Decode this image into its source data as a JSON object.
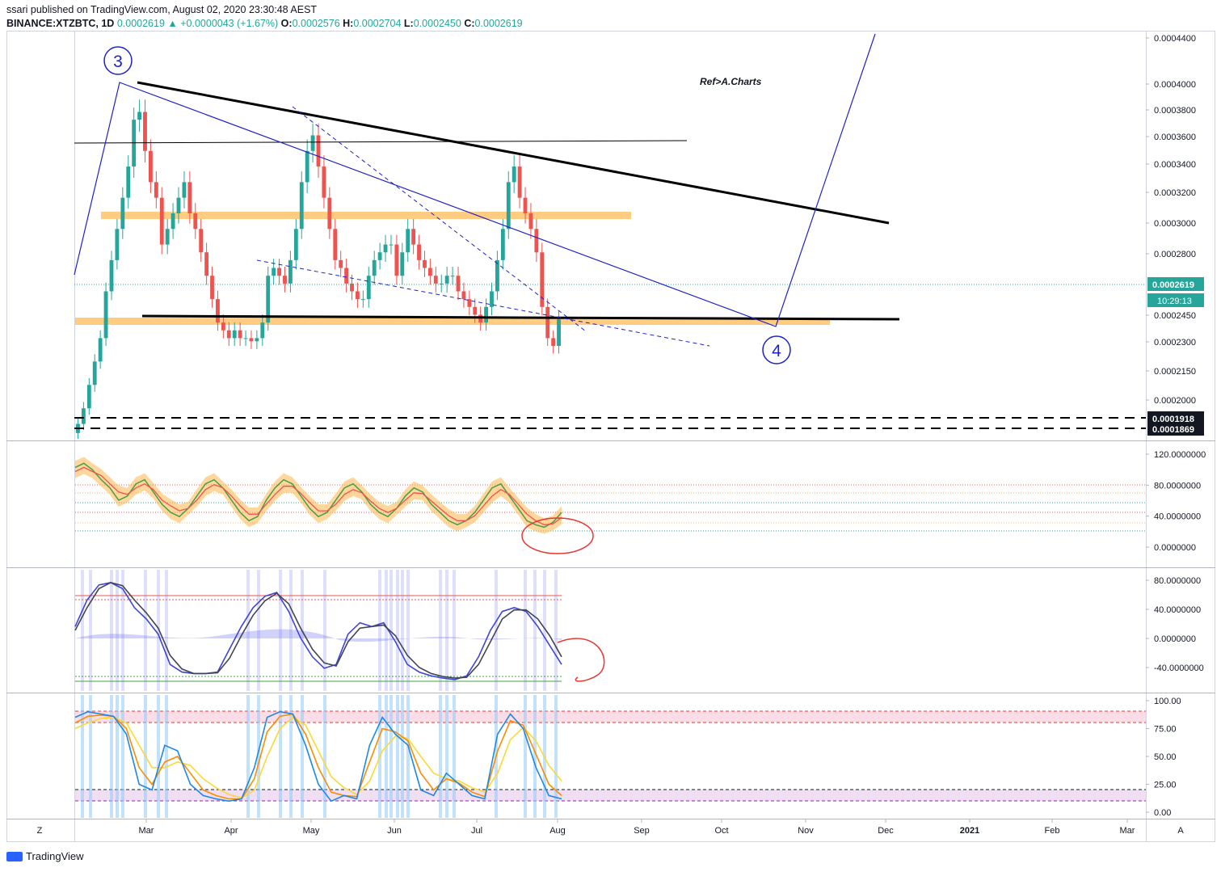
{
  "header": {
    "publisher_line": "ssari published on TradingView.com, August 02, 2020 23:30:48 AEST",
    "symbol_line": "BINANCE:XTZBTC, 1D",
    "close_value": "0.0002619",
    "change": "▲ +0.0000043 (+1.67%)",
    "o_label": "O:",
    "o_value": "0.0002576",
    "h_label": "H:",
    "h_value": "0.0002704",
    "l_label": "L:",
    "l_value": "0.0002450",
    "c_label": "C:",
    "c_value": "0.0002619"
  },
  "colors": {
    "up": "#26a69a",
    "down": "#ef5350",
    "trendline": "#000000",
    "wave_line": "#1e22c7",
    "zone": "#ffb74d",
    "price_label_bg": "#26a69a",
    "label_dark": "#131722"
  },
  "chart_data": [
    {
      "type": "candlestick",
      "title": "BINANCE:XTZBTC, 1D",
      "y_ticks": [
        "0.0004400",
        "0.0004000",
        "0.0003800",
        "0.0003600",
        "0.0003400",
        "0.0003200",
        "0.0003000",
        "0.0002800",
        "0.0002450",
        "0.0002300",
        "0.0002150",
        "0.0002000"
      ],
      "x_ticks": [
        "Mar",
        "Apr",
        "May",
        "Jun",
        "Jul",
        "Aug",
        "Sep",
        "Oct",
        "Nov",
        "Dec",
        "2021",
        "Feb",
        "Mar"
      ],
      "price_labels": {
        "last": "0.0002619",
        "countdown": "10:29:13",
        "level1": "0.0001918",
        "level2": "0.0001869"
      },
      "annotations": {
        "wave3": "3",
        "wave4": "4",
        "ref": "Ref>A.Charts"
      },
      "series_close": [
        0.000195,
        0.000205,
        0.00022,
        0.000235,
        0.00025,
        0.00028,
        0.0003,
        0.00032,
        0.00034,
        0.00036,
        0.00039,
        0.000395,
        0.00037,
        0.00035,
        0.00034,
        0.00031,
        0.00032,
        0.00033,
        0.00034,
        0.00035,
        0.00033,
        0.00032,
        0.000305,
        0.00029,
        0.000275,
        0.00026,
        0.000255,
        0.00025,
        0.000255,
        0.00025,
        0.00025,
        0.000248,
        0.00025,
        0.00026,
        0.00029,
        0.000295,
        0.00029,
        0.000285,
        0.0003,
        0.00032,
        0.00035,
        0.00037,
        0.00038,
        0.00036,
        0.00034,
        0.00032,
        0.0003,
        0.000295,
        0.000285,
        0.00028,
        0.000275,
        0.000275,
        0.00029,
        0.0003,
        0.000305,
        0.00031,
        0.00031,
        0.00029,
        0.000305,
        0.00032,
        0.00031,
        0.0003,
        0.000295,
        0.00029,
        0.000285,
        0.000285,
        0.00029,
        0.00029,
        0.00028,
        0.000275,
        0.00027,
        0.000265,
        0.00026,
        0.00027,
        0.00028,
        0.0003,
        0.00032,
        0.00035,
        0.00036,
        0.00034,
        0.00033,
        0.00032,
        0.000305,
        0.00027,
        0.00025,
        0.000245,
        0.000262
      ],
      "ylim": [
        0.000187,
        0.000445
      ]
    },
    {
      "type": "line",
      "title": "",
      "y_ticks": [
        "120.0000000",
        "80.0000000",
        "40.0000000",
        "0.0000000"
      ],
      "series": [
        {
          "values": [
            95,
            100,
            92,
            80,
            70,
            55,
            60,
            75,
            80,
            65,
            50,
            40,
            35,
            45,
            60,
            75,
            80,
            70,
            55,
            40,
            30,
            35,
            55,
            70,
            80,
            75,
            60,
            45,
            35,
            40,
            55,
            70,
            75,
            65,
            50,
            40,
            35,
            45,
            60,
            70,
            65,
            50,
            40,
            30,
            25,
            30,
            40,
            55,
            70,
            75,
            60,
            45,
            30,
            25,
            22,
            28,
            40
          ]
        },
        {
          "values": [
            90,
            95,
            90,
            85,
            75,
            65,
            62,
            70,
            75,
            68,
            55,
            48,
            42,
            45,
            55,
            68,
            74,
            70,
            60,
            48,
            38,
            38,
            50,
            62,
            72,
            72,
            63,
            52,
            42,
            42,
            50,
            62,
            68,
            64,
            54,
            45,
            40,
            45,
            55,
            64,
            63,
            54,
            45,
            36,
            30,
            30,
            36,
            48,
            60,
            68,
            62,
            50,
            38,
            30,
            25,
            26,
            34
          ]
        }
      ],
      "ylim": [
        -25,
        125
      ]
    },
    {
      "type": "line",
      "title": "",
      "y_ticks": [
        "80.0000000",
        "40.0000000",
        "0.0000000",
        "-40.0000000"
      ],
      "series": [
        {
          "values": [
            20,
            55,
            75,
            78,
            70,
            45,
            30,
            10,
            -30,
            -40,
            -42,
            -42,
            -40,
            -10,
            20,
            45,
            60,
            65,
            40,
            5,
            -20,
            -35,
            -30,
            10,
            25,
            20,
            25,
            0,
            -30,
            -40,
            -45,
            -48,
            -50,
            -45,
            -20,
            15,
            40,
            45,
            40,
            20,
            -5,
            -30
          ]
        },
        {
          "values": [
            15,
            45,
            70,
            78,
            74,
            55,
            38,
            18,
            -18,
            -36,
            -42,
            -42,
            -41,
            -22,
            8,
            35,
            54,
            64,
            50,
            18,
            -10,
            -28,
            -32,
            0,
            18,
            20,
            22,
            8,
            -18,
            -34,
            -42,
            -46,
            -48,
            -47,
            -30,
            0,
            30,
            42,
            42,
            30,
            8,
            -20
          ]
        }
      ],
      "ylim": [
        -65,
        95
      ]
    },
    {
      "type": "line",
      "title": "",
      "y_ticks": [
        "100.00",
        "75.00",
        "50.00",
        "25.00",
        "0.00"
      ],
      "series": [
        {
          "values": [
            85,
            90,
            88,
            86,
            70,
            25,
            20,
            60,
            55,
            25,
            15,
            12,
            10,
            12,
            40,
            85,
            90,
            88,
            60,
            25,
            10,
            15,
            12,
            60,
            85,
            70,
            60,
            20,
            15,
            35,
            25,
            15,
            12,
            70,
            88,
            75,
            40,
            15,
            12
          ]
        },
        {
          "values": [
            80,
            86,
            87,
            86,
            75,
            40,
            25,
            45,
            50,
            35,
            20,
            15,
            12,
            12,
            30,
            72,
            86,
            88,
            70,
            40,
            18,
            15,
            14,
            45,
            75,
            72,
            64,
            35,
            20,
            30,
            26,
            18,
            14,
            55,
            82,
            78,
            52,
            25,
            15
          ]
        },
        {
          "values": [
            75,
            80,
            84,
            85,
            80,
            60,
            40,
            40,
            45,
            42,
            30,
            22,
            16,
            13,
            20,
            50,
            75,
            85,
            78,
            55,
            32,
            22,
            16,
            28,
            55,
            68,
            66,
            50,
            35,
            30,
            28,
            22,
            18,
            35,
            65,
            76,
            64,
            42,
            28
          ]
        }
      ],
      "ylim": [
        -5,
        105
      ]
    }
  ],
  "scale_buttons": {
    "left": "Z",
    "right": "A"
  },
  "footer": {
    "brand": "TradingView"
  }
}
